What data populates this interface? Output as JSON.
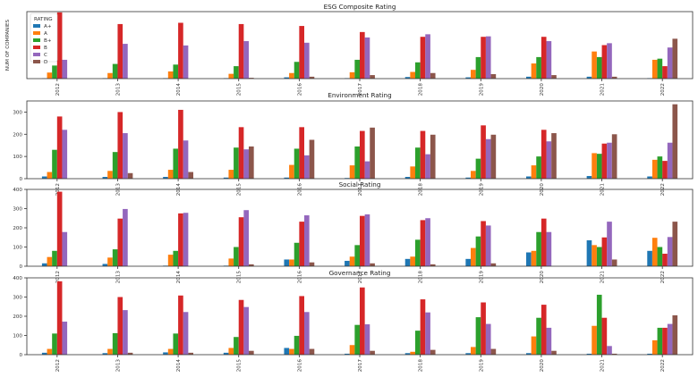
{
  "colors": {
    "A+": "#1f77b4",
    "A": "#ff7f0e",
    "B+": "#2ca02c",
    "B": "#d62728",
    "C": "#9467bd",
    "D": "#8c564b"
  },
  "chart_data": [
    {
      "type": "bar",
      "title": "ESG Composite Rating",
      "ylabel": "NUM OF COMPANIES",
      "legend_title": "RATING",
      "legend_position": "top-left",
      "ylim": [
        0,
        420
      ],
      "yticks": [],
      "categories": [
        "2012",
        "2013",
        "2014",
        "2015",
        "2016",
        "2017",
        "2018",
        "2019",
        "2020",
        "2021",
        "2022"
      ],
      "series": [
        {
          "name": "A+",
          "values": [
            2,
            3,
            3,
            3,
            8,
            3,
            10,
            8,
            12,
            12,
            3
          ]
        },
        {
          "name": "A",
          "values": [
            38,
            35,
            45,
            30,
            35,
            40,
            42,
            55,
            95,
            170,
            118
          ]
        },
        {
          "name": "B+",
          "values": [
            82,
            92,
            88,
            78,
            105,
            118,
            102,
            135,
            135,
            135,
            125
          ]
        },
        {
          "name": "B",
          "values": [
            415,
            342,
            350,
            342,
            330,
            292,
            262,
            262,
            262,
            210,
            78
          ]
        },
        {
          "name": "C",
          "values": [
            118,
            218,
            208,
            235,
            225,
            258,
            278,
            265,
            235,
            222,
            195
          ]
        },
        {
          "name": "D",
          "values": [
            0,
            0,
            0,
            5,
            12,
            22,
            35,
            28,
            22,
            12,
            250
          ]
        }
      ]
    },
    {
      "type": "bar",
      "title": "Environment Rating",
      "ylabel": "",
      "ylim": [
        0,
        350
      ],
      "yticks": [
        "0",
        "100",
        "200",
        "300"
      ],
      "categories": [
        "2012",
        "2013",
        "2014",
        "2015",
        "2016",
        "2017",
        "2018",
        "2019",
        "2020",
        "2021",
        "2022"
      ],
      "series": [
        {
          "name": "A+",
          "values": [
            10,
            8,
            8,
            5,
            5,
            3,
            8,
            5,
            10,
            12,
            10
          ]
        },
        {
          "name": "A",
          "values": [
            30,
            35,
            40,
            40,
            62,
            60,
            55,
            35,
            60,
            115,
            85
          ]
        },
        {
          "name": "B+",
          "values": [
            130,
            120,
            135,
            140,
            135,
            145,
            140,
            90,
            100,
            112,
            100
          ]
        },
        {
          "name": "B",
          "values": [
            280,
            300,
            310,
            232,
            232,
            215,
            215,
            240,
            220,
            158,
            80
          ]
        },
        {
          "name": "C",
          "values": [
            220,
            205,
            172,
            132,
            105,
            78,
            110,
            178,
            168,
            162,
            162
          ]
        },
        {
          "name": "D",
          "values": [
            0,
            25,
            30,
            145,
            175,
            230,
            198,
            198,
            205,
            200,
            335
          ]
        }
      ]
    },
    {
      "type": "bar",
      "title": "Social Rating",
      "ylabel": "",
      "ylim": [
        0,
        400
      ],
      "yticks": [
        "0",
        "100",
        "200",
        "300",
        "400"
      ],
      "categories": [
        "2012",
        "2013",
        "2014",
        "2015",
        "2016",
        "2017",
        "2018",
        "2019",
        "2020",
        "2021",
        "2022"
      ],
      "series": [
        {
          "name": "A+",
          "values": [
            15,
            12,
            3,
            3,
            35,
            28,
            38,
            38,
            72,
            135,
            80
          ]
        },
        {
          "name": "A",
          "values": [
            48,
            45,
            60,
            40,
            35,
            50,
            50,
            95,
            80,
            110,
            148
          ]
        },
        {
          "name": "B+",
          "values": [
            80,
            88,
            80,
            100,
            122,
            110,
            138,
            155,
            178,
            100,
            100
          ]
        },
        {
          "name": "B",
          "values": [
            388,
            248,
            275,
            255,
            232,
            262,
            240,
            235,
            248,
            150,
            65
          ]
        },
        {
          "name": "C",
          "values": [
            178,
            298,
            278,
            292,
            265,
            270,
            250,
            212,
            178,
            232,
            152
          ]
        },
        {
          "name": "D",
          "values": [
            0,
            0,
            0,
            10,
            20,
            15,
            10,
            15,
            0,
            35,
            232
          ]
        }
      ]
    },
    {
      "type": "bar",
      "title": "Governance Rating",
      "ylabel": "",
      "ylim": [
        0,
        400
      ],
      "yticks": [
        "0",
        "100",
        "200",
        "300",
        "400"
      ],
      "categories": [
        "2012",
        "2013",
        "2014",
        "2015",
        "2016",
        "2017",
        "2018",
        "2019",
        "2020",
        "2021",
        "2022"
      ],
      "series": [
        {
          "name": "A+",
          "values": [
            10,
            8,
            12,
            10,
            35,
            5,
            8,
            8,
            8,
            5,
            5
          ]
        },
        {
          "name": "A",
          "values": [
            30,
            30,
            30,
            35,
            30,
            50,
            15,
            40,
            95,
            150,
            75
          ]
        },
        {
          "name": "B+",
          "values": [
            110,
            112,
            110,
            92,
            98,
            155,
            125,
            195,
            192,
            312,
            140
          ]
        },
        {
          "name": "B",
          "values": [
            382,
            300,
            308,
            285,
            305,
            350,
            288,
            272,
            260,
            192,
            140
          ]
        },
        {
          "name": "C",
          "values": [
            172,
            232,
            222,
            248,
            222,
            158,
            220,
            160,
            140,
            45,
            160
          ]
        },
        {
          "name": "D",
          "values": [
            0,
            10,
            10,
            20,
            30,
            20,
            25,
            30,
            20,
            5,
            205
          ]
        }
      ]
    }
  ]
}
